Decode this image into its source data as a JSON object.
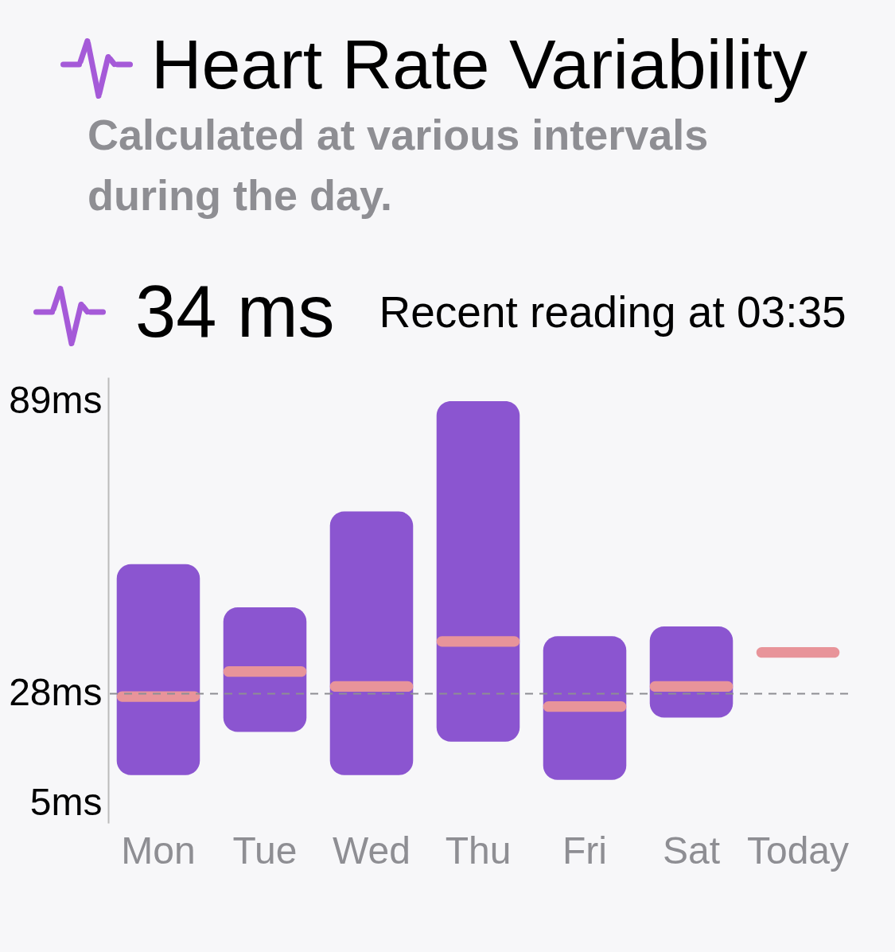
{
  "chart_data": {
    "type": "bar",
    "title": "Heart Rate Variability",
    "subtitle": "Calculated at various intervals during the day.",
    "annotations": [
      "34 ms",
      "Recent reading at 03:35"
    ],
    "categories": [
      "Mon",
      "Tue",
      "Wed",
      "Thu",
      "Fri",
      "Sat",
      "Today"
    ],
    "series": [
      {
        "color": "#8b55d0",
        "base": [
          11,
          20,
          11,
          18,
          10,
          23,
          null
        ],
        "values": [
          44,
          26,
          55,
          71,
          30,
          19,
          null
        ]
      },
      {
        "color": "#e8949a",
        "base": [
          26.3,
          31.5,
          28.4,
          37.8,
          24.2,
          28.4,
          35.5
        ],
        "values": [
          2.2,
          2.2,
          2.2,
          2.2,
          2.2,
          2.2,
          2.2
        ]
      }
    ],
    "ylim": [
      1,
      94
    ],
    "yticks": [
      {
        "value": 5,
        "label": "5ms"
      },
      {
        "value": 28,
        "label": "28ms"
      },
      {
        "value": 89,
        "label": "89ms"
      }
    ],
    "ref_lines": [
      {
        "axis": "y",
        "value": 28,
        "color": "#8e8e93",
        "line_style": "dashed"
      }
    ],
    "grid": false
  }
}
